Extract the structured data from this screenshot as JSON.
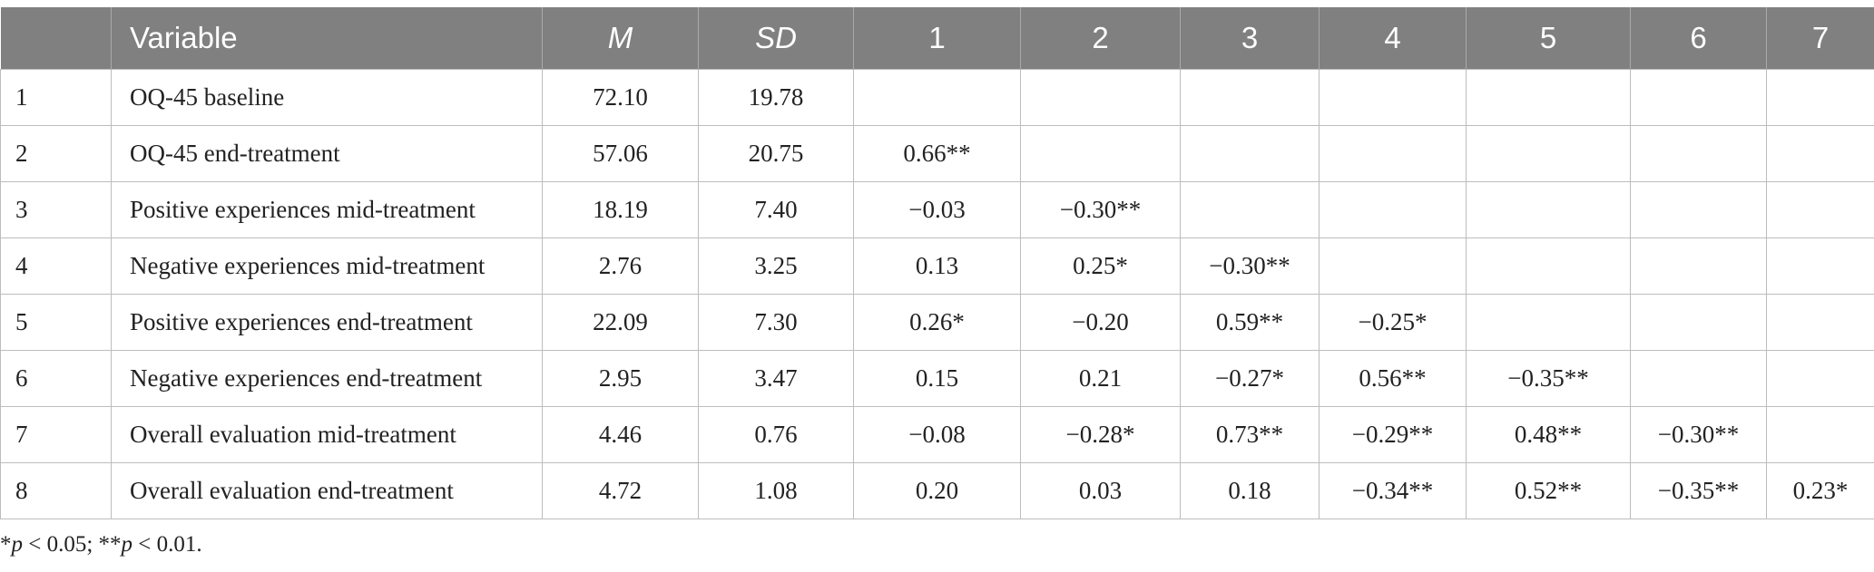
{
  "table": {
    "headers": [
      "",
      "Variable",
      "M",
      "SD",
      "1",
      "2",
      "3",
      "4",
      "5",
      "6",
      "7"
    ],
    "rows": [
      {
        "idx": "1",
        "variable": "OQ-45 baseline",
        "m": "72.10",
        "sd": "19.78",
        "c1": "",
        "c2": "",
        "c3": "",
        "c4": "",
        "c5": "",
        "c6": "",
        "c7": ""
      },
      {
        "idx": "2",
        "variable": "OQ-45 end-treatment",
        "m": "57.06",
        "sd": "20.75",
        "c1": "0.66**",
        "c2": "",
        "c3": "",
        "c4": "",
        "c5": "",
        "c6": "",
        "c7": ""
      },
      {
        "idx": "3",
        "variable": "Positive experiences mid-treatment",
        "m": "18.19",
        "sd": "7.40",
        "c1": "−0.03",
        "c2": "−0.30**",
        "c3": "",
        "c4": "",
        "c5": "",
        "c6": "",
        "c7": ""
      },
      {
        "idx": "4",
        "variable": "Negative experiences mid-treatment",
        "m": "2.76",
        "sd": "3.25",
        "c1": "0.13",
        "c2": "0.25*",
        "c3": "−0.30**",
        "c4": "",
        "c5": "",
        "c6": "",
        "c7": ""
      },
      {
        "idx": "5",
        "variable": "Positive experiences end-treatment",
        "m": "22.09",
        "sd": "7.30",
        "c1": "0.26*",
        "c2": "−0.20",
        "c3": "0.59**",
        "c4": "−0.25*",
        "c5": "",
        "c6": "",
        "c7": ""
      },
      {
        "idx": "6",
        "variable": "Negative experiences end-treatment",
        "m": "2.95",
        "sd": "3.47",
        "c1": "0.15",
        "c2": "0.21",
        "c3": "−0.27*",
        "c4": "0.56**",
        "c5": "−0.35**",
        "c6": "",
        "c7": ""
      },
      {
        "idx": "7",
        "variable": "Overall evaluation mid-treatment",
        "m": "4.46",
        "sd": "0.76",
        "c1": "−0.08",
        "c2": "−0.28*",
        "c3": "0.73**",
        "c4": "−0.29**",
        "c5": "0.48**",
        "c6": "−0.30**",
        "c7": ""
      },
      {
        "idx": "8",
        "variable": "Overall evaluation end-treatment",
        "m": "4.72",
        "sd": "1.08",
        "c1": "0.20",
        "c2": "0.03",
        "c3": "0.18",
        "c4": "−0.34**",
        "c5": "0.52**",
        "c6": "−0.35**",
        "c7": "0.23*"
      }
    ]
  },
  "footnote": {
    "star1": "*",
    "p1": "p",
    "t1": " < 0.05; **",
    "p2": "p",
    "t2": " < 0.01."
  }
}
